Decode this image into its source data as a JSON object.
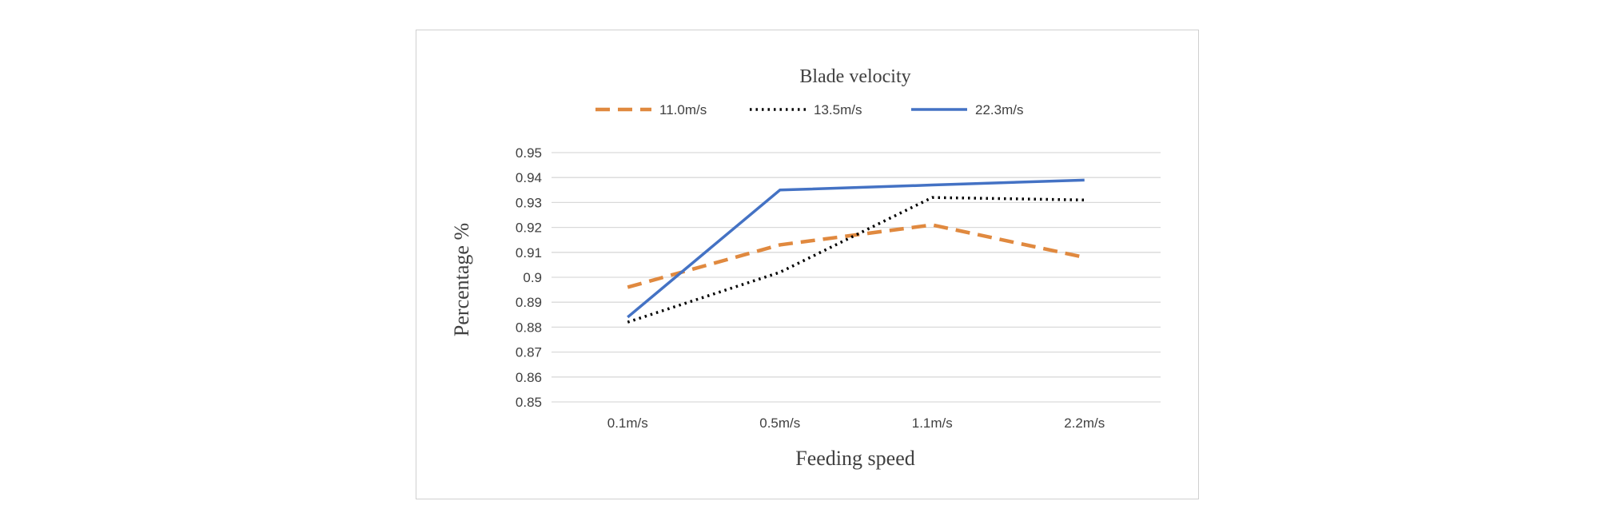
{
  "chart_data": {
    "type": "line",
    "legend_title": "Blade velocity",
    "legend_position": "top",
    "xlabel": "Feeding speed",
    "ylabel": "Percentage %",
    "categories": [
      "0.1m/s",
      "0.5m/s",
      "1.1m/s",
      "2.2m/s"
    ],
    "ylim": [
      0.85,
      0.95
    ],
    "yticks": [
      "0.95",
      "0.94",
      "0.93",
      "0.92",
      "0.91",
      "0.9",
      "0.89",
      "0.88",
      "0.87",
      "0.86",
      "0.85"
    ],
    "grid": true,
    "series": [
      {
        "name": "11.0m/s",
        "values": [
          0.896,
          0.913,
          0.921,
          0.908
        ],
        "color": "#e0893f",
        "style": "dashed"
      },
      {
        "name": "13.5m/s",
        "values": [
          0.882,
          0.902,
          0.932,
          0.931
        ],
        "color": "#000000",
        "style": "dotted"
      },
      {
        "name": "22.3m/s",
        "values": [
          0.884,
          0.935,
          0.937,
          0.939
        ],
        "color": "#4472c4",
        "style": "solid"
      }
    ]
  }
}
